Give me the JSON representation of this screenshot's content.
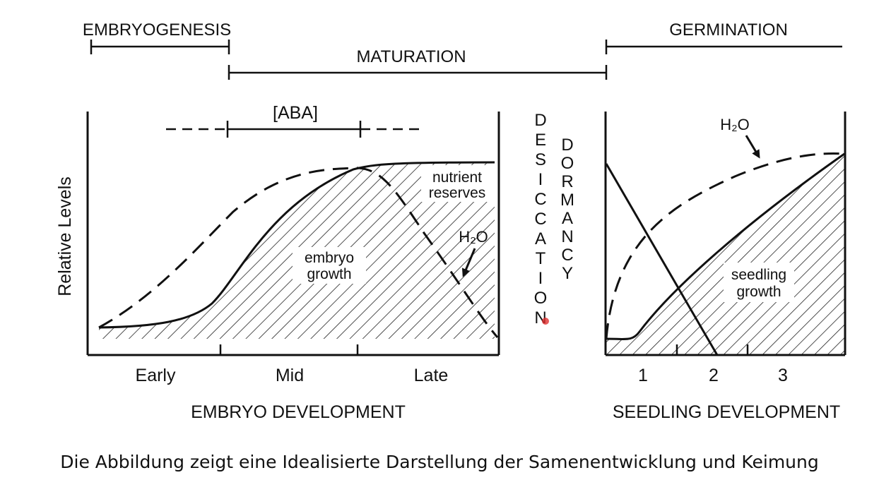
{
  "phases": {
    "embryogenesis": "EMBRYOGENESIS",
    "maturation": "MATURATION",
    "germination": "GERMINATION"
  },
  "aba_label": "[ABA]",
  "y_axis_label": "Relative Levels",
  "embryo_panel": {
    "x_ticks": [
      "Early",
      "Mid",
      "Late"
    ],
    "x_title": "EMBRYO DEVELOPMENT",
    "annotations": {
      "nutrient_line1": "nutrient",
      "nutrient_line2": "reserves",
      "water": "H₂O",
      "growth_line1": "embryo",
      "growth_line2": "growth"
    }
  },
  "middle": {
    "desiccation": "DESICCATION",
    "dormancy": "DORMANCY"
  },
  "seedling_panel": {
    "x_ticks": [
      "1",
      "2",
      "3"
    ],
    "x_title": "SEEDLING DEVELOPMENT",
    "annotations": {
      "water": "H₂O",
      "growth_line1": "seedling",
      "growth_line2": "growth"
    }
  },
  "caption": "Die Abbildung zeigt eine Idealisierte  Darstellung der Samenentwicklung und Keimung"
}
